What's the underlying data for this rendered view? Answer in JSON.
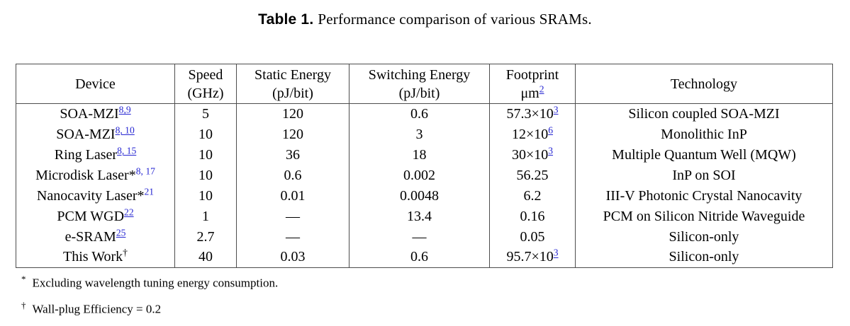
{
  "caption": {
    "label": "Table 1.",
    "text": "Performance comparison of various SRAMs."
  },
  "accent_colors": {
    "reference_link_blue": "#2626d2",
    "table_border_gray": "#4d4d4d"
  },
  "table": {
    "columns": [
      {
        "key": "device",
        "line1": {
          "t": "Device"
        }
      },
      {
        "key": "speed",
        "line1": {
          "t": "Speed"
        },
        "line2": {
          "t": "(GHz)"
        }
      },
      {
        "key": "static-energy",
        "line1": {
          "t": "Static Energy"
        },
        "line2": {
          "t": "(pJ/bit)"
        }
      },
      {
        "key": "switching-energy",
        "line1": {
          "t": "Switching Energy"
        },
        "line2": {
          "t": "(pJ/bit)"
        }
      },
      {
        "key": "footprint",
        "line1": {
          "t": "Footprint"
        },
        "line2": {
          "t": "μm",
          "sup": "2",
          "supStyle": "link"
        }
      },
      {
        "key": "technology",
        "line1": {
          "t": "Technology"
        }
      }
    ],
    "rows": [
      [
        {
          "t": "SOA-MZI",
          "sup": "8,9",
          "supStyle": "link"
        },
        {
          "t": "5"
        },
        {
          "t": "120"
        },
        {
          "t": "0.6"
        },
        {
          "t": "57.3×10",
          "sup": "3",
          "supStyle": "link"
        },
        {
          "t": "Silicon coupled SOA-MZI"
        }
      ],
      [
        {
          "t": "SOA-MZI",
          "sup": "8, 10",
          "supStyle": "link"
        },
        {
          "t": "10"
        },
        {
          "t": "120"
        },
        {
          "t": "3"
        },
        {
          "t": "12×10",
          "sup": "6",
          "supStyle": "link"
        },
        {
          "t": "Monolithic InP"
        }
      ],
      [
        {
          "t": "Ring Laser",
          "sup": "8, 15",
          "supStyle": "link"
        },
        {
          "t": "10"
        },
        {
          "t": "36"
        },
        {
          "t": "18"
        },
        {
          "t": "30×10",
          "sup": "3",
          "supStyle": "link"
        },
        {
          "t": "Multiple Quantum Well (MQW)"
        }
      ],
      [
        {
          "t": "Microdisk Laser*",
          "sup": "8, 17",
          "supStyle": "plain"
        },
        {
          "t": "10"
        },
        {
          "t": "0.6"
        },
        {
          "t": "0.002"
        },
        {
          "t": "56.25"
        },
        {
          "t": "InP on SOI"
        }
      ],
      [
        {
          "t": "Nanocavity Laser*",
          "sup": "21",
          "supStyle": "plain"
        },
        {
          "t": "10"
        },
        {
          "t": "0.01"
        },
        {
          "t": "0.0048"
        },
        {
          "t": "6.2"
        },
        {
          "t": "III-V Photonic Crystal Nanocavity"
        }
      ],
      [
        {
          "t": "PCM WGD",
          "sup": "22",
          "supStyle": "link"
        },
        {
          "t": "1"
        },
        {
          "t": "—"
        },
        {
          "t": "13.4"
        },
        {
          "t": "0.16"
        },
        {
          "t": "PCM on Silicon Nitride Waveguide"
        }
      ],
      [
        {
          "t": "e-SRAM",
          "sup": "25",
          "supStyle": "link"
        },
        {
          "t": "2.7"
        },
        {
          "t": "—"
        },
        {
          "t": "—"
        },
        {
          "t": "0.05"
        },
        {
          "t": "Silicon-only"
        }
      ],
      [
        {
          "t": "This Work",
          "sup": "†",
          "supStyle": "black",
          "bold": true
        },
        {
          "t": "40",
          "bold": true
        },
        {
          "t": "0.03",
          "bold": true
        },
        {
          "t": "0.6",
          "bold": true
        },
        {
          "t": "95.7×10",
          "sup": "3",
          "supStyle": "link"
        },
        {
          "t": "Silicon-only",
          "bold": true
        }
      ]
    ]
  },
  "footnotes": [
    {
      "marker": "*",
      "text": "Excluding wavelength tuning energy consumption."
    },
    {
      "marker": "†",
      "text": "Wall-plug Efficiency = 0.2"
    }
  ]
}
